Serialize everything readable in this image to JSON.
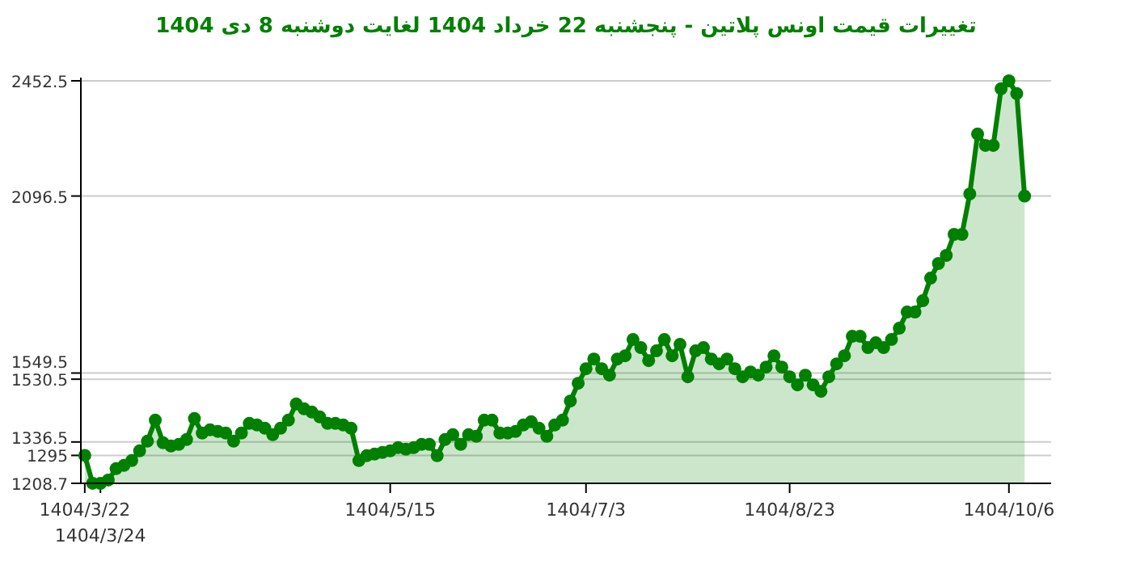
{
  "chart_data": {
    "type": "area",
    "title": "تغییرات قیمت اونس پلاتین - پنجشنبه  22 خرداد 1404 لغایت  دوشنبه  8 دی 1404",
    "categories": [
      "1404/3/22",
      null,
      "1404/3/24",
      null,
      null,
      null,
      null,
      null,
      null,
      null,
      null,
      null,
      null,
      null,
      null,
      null,
      null,
      null,
      null,
      null,
      null,
      null,
      null,
      null,
      null,
      null,
      null,
      null,
      null,
      null,
      null,
      null,
      null,
      null,
      null,
      null,
      null,
      null,
      null,
      "1404/5/15",
      null,
      null,
      null,
      null,
      null,
      null,
      null,
      null,
      null,
      null,
      null,
      null,
      null,
      null,
      null,
      null,
      null,
      null,
      null,
      null,
      null,
      null,
      null,
      null,
      "1404/7/3",
      null,
      null,
      null,
      null,
      null,
      null,
      null,
      null,
      null,
      null,
      null,
      null,
      null,
      null,
      null,
      null,
      null,
      null,
      null,
      null,
      null,
      null,
      null,
      null,
      null,
      "1404/8/23",
      null,
      null,
      null,
      null,
      null,
      null,
      null,
      null,
      null,
      null,
      null,
      null,
      null,
      null,
      null,
      null,
      null,
      null,
      null,
      null,
      null,
      null,
      null,
      null,
      null,
      null,
      null,
      "1404/10/6",
      null,
      null
    ],
    "series": [
      {
        "color": "#008000",
        "values": [
          1295,
          1209,
          1208.7,
          1219,
          1254,
          1264,
          1279,
          1309,
          1339,
          1404,
          1334,
          1324,
          1329,
          1344,
          1409,
          1364,
          1374,
          1369,
          1364,
          1339,
          1364,
          1394,
          1389,
          1379,
          1359,
          1379,
          1404,
          1454,
          1439,
          1429,
          1414,
          1394,
          1394,
          1389,
          1379,
          1279,
          1294,
          1299,
          1304,
          1309,
          1319,
          1314,
          1319,
          1329,
          1329,
          1294,
          1344,
          1359,
          1329,
          1359,
          1354,
          1404,
          1404,
          1364,
          1364,
          1369,
          1389,
          1399,
          1379,
          1354,
          1389,
          1404,
          1463,
          1518,
          1563,
          1593,
          1563,
          1543,
          1593,
          1603,
          1653,
          1628,
          1588,
          1618,
          1653,
          1603,
          1638,
          1538,
          1618,
          1628,
          1593,
          1578,
          1593,
          1563,
          1538,
          1553,
          1543,
          1568,
          1603,
          1568,
          1538,
          1513,
          1543,
          1513,
          1493,
          1538,
          1578,
          1603,
          1663,
          1663,
          1628,
          1643,
          1628,
          1653,
          1688,
          1738,
          1738,
          1773,
          1843,
          1888,
          1913,
          1978,
          1978,
          2103,
          2288,
          2253,
          2253,
          2428,
          2452.5,
          2413,
          2096.5
        ]
      }
    ],
    "ylim": [
      1208.7,
      2452.5
    ],
    "yticks": [
      1208.7,
      1295,
      1336.5,
      1530.5,
      1549.5,
      2096.5,
      2452.5
    ],
    "grid": "y",
    "marker": "circle"
  }
}
